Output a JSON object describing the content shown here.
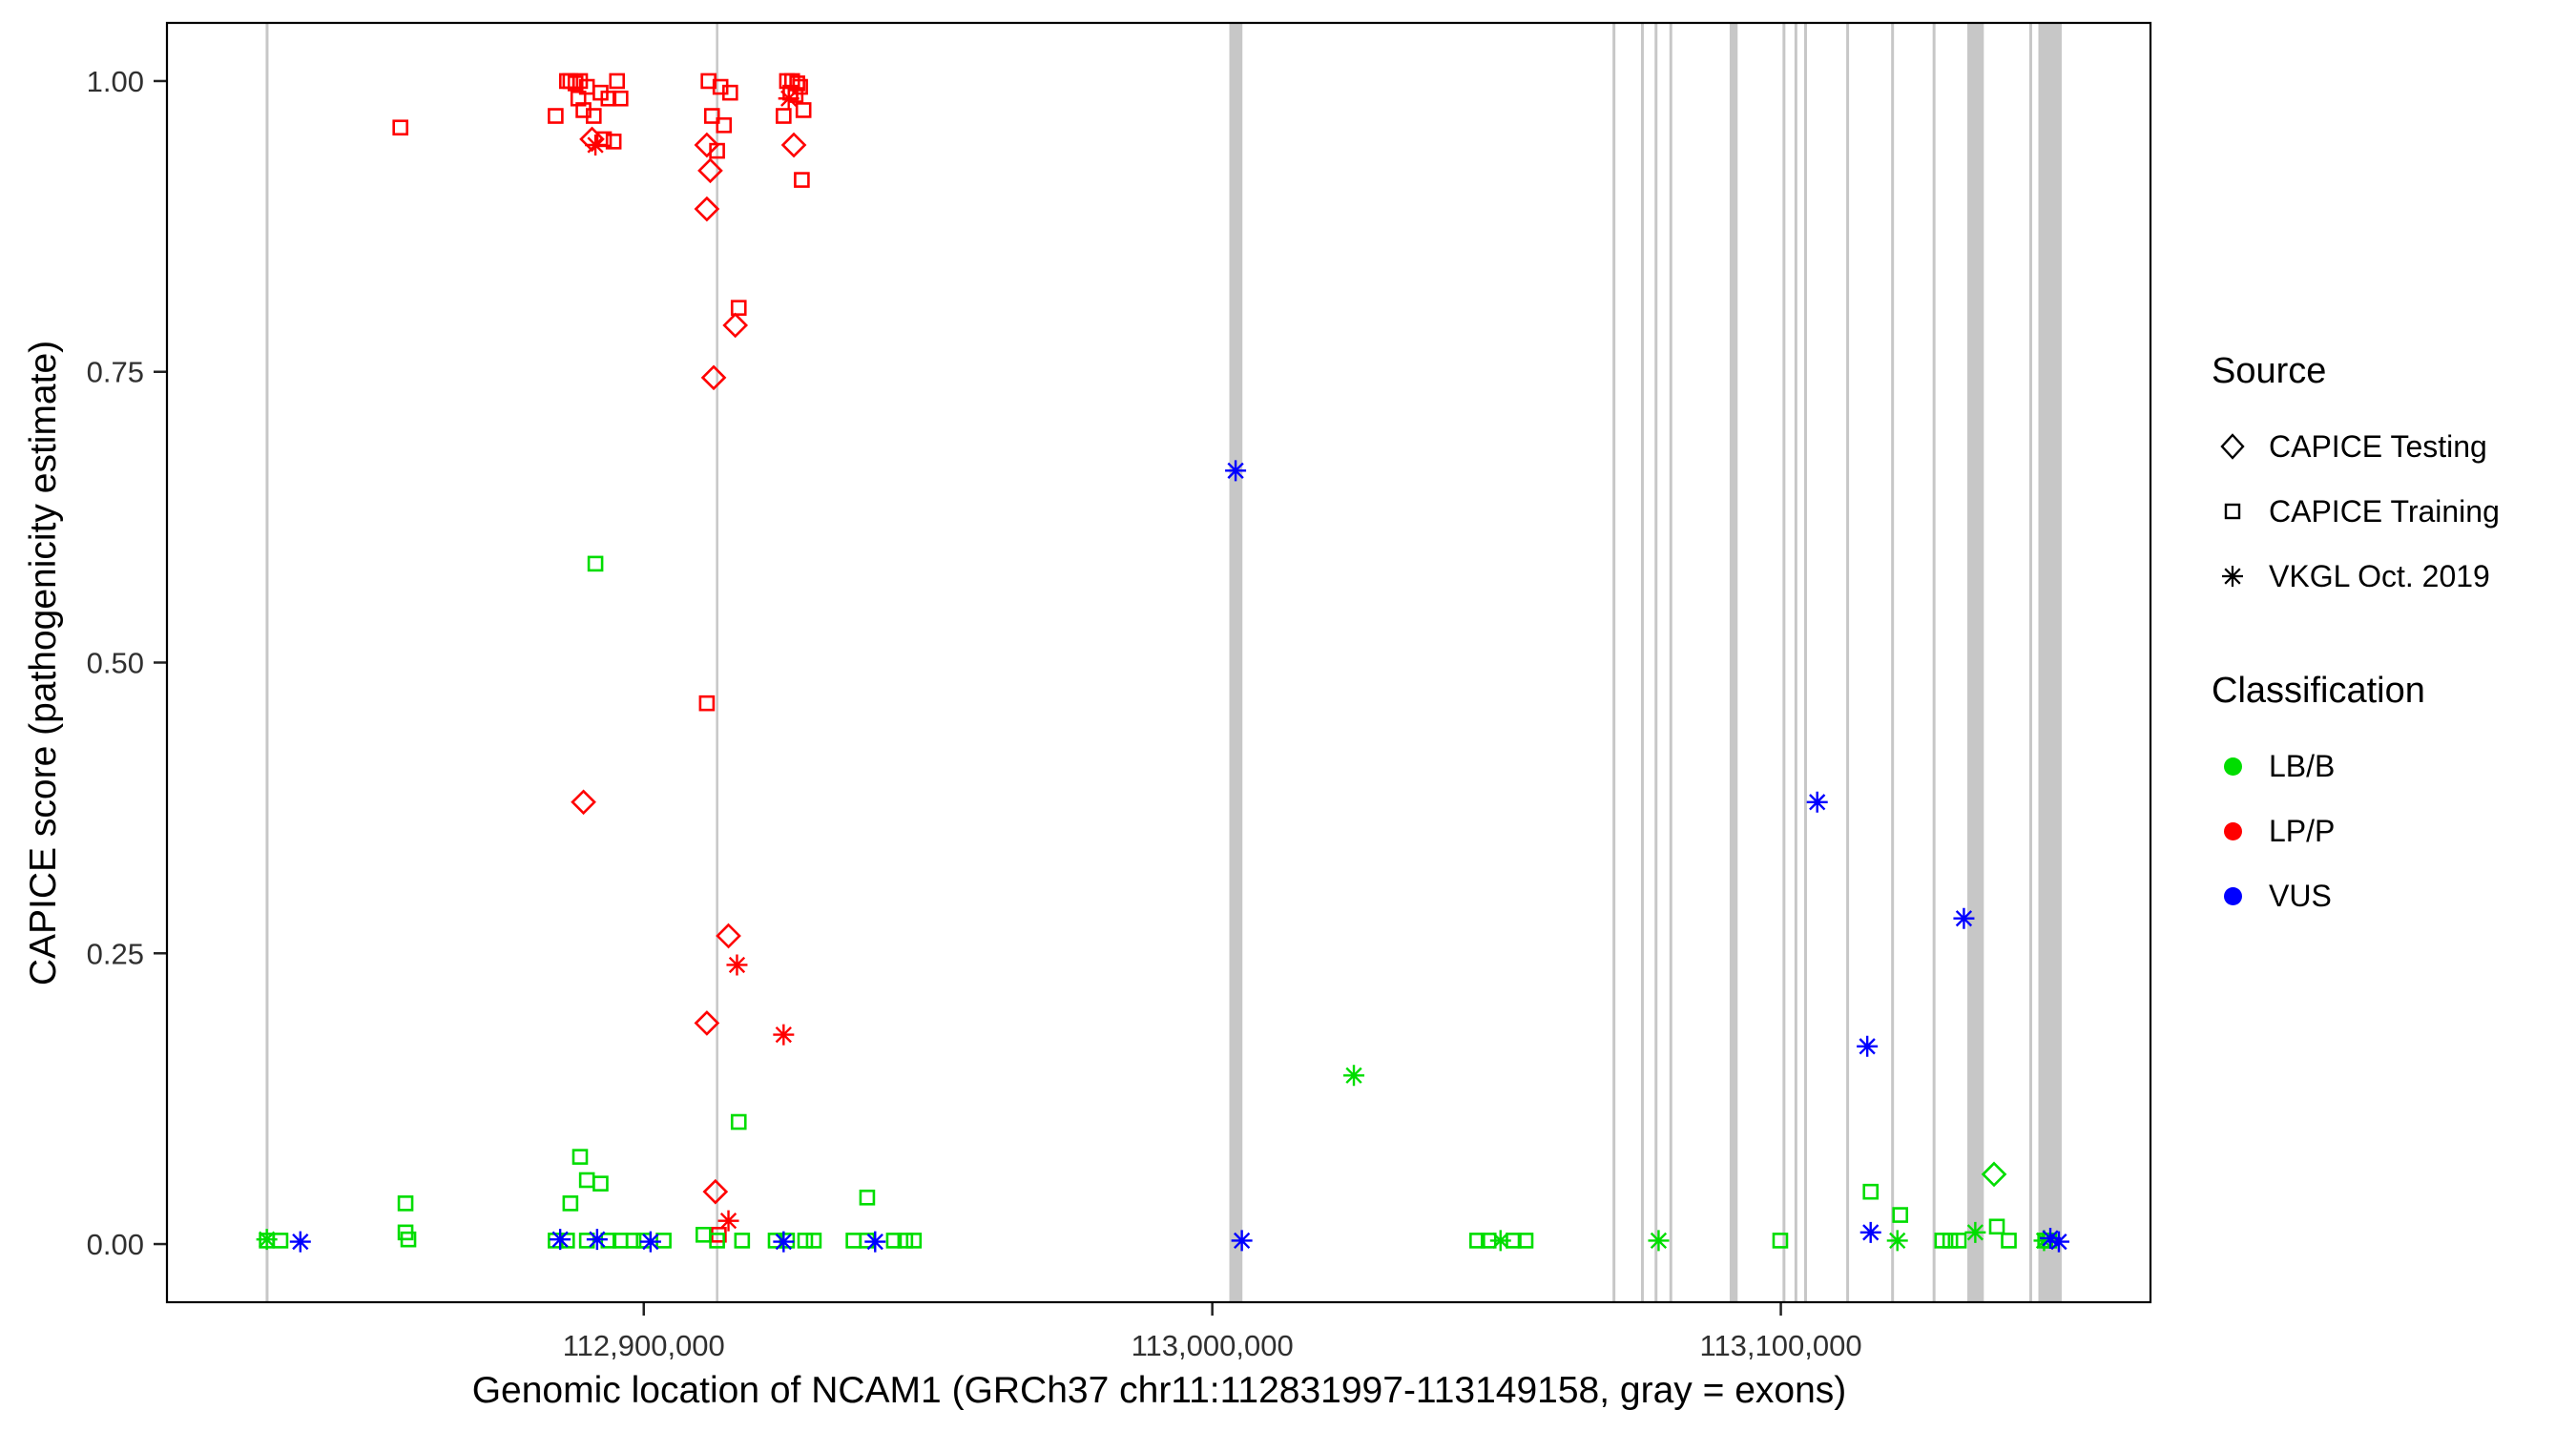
{
  "axes": {
    "x_title": "Genomic location of NCAM1 (GRCh37 chr11:112831997-113149158, gray = exons)",
    "y_title": "CAPICE score (pathogenicity estimate)",
    "x_ticks": [
      {
        "value": 112900000,
        "label": "112,900,000"
      },
      {
        "value": 113000000,
        "label": "113,000,000"
      },
      {
        "value": 113100000,
        "label": "113,100,000"
      }
    ],
    "y_ticks": [
      {
        "value": 0.0,
        "label": "0.00"
      },
      {
        "value": 0.25,
        "label": "0.25"
      },
      {
        "value": 0.5,
        "label": "0.50"
      },
      {
        "value": 0.75,
        "label": "0.75"
      },
      {
        "value": 1.0,
        "label": "1.00"
      }
    ]
  },
  "legend": {
    "source": {
      "title": "Source",
      "items": [
        {
          "label": "CAPICE Testing",
          "shape": "diamond"
        },
        {
          "label": "CAPICE Training",
          "shape": "square"
        },
        {
          "label": "VKGL Oct. 2019",
          "shape": "asterisk"
        }
      ]
    },
    "classification": {
      "title": "Classification",
      "items": [
        {
          "label": "LB/B",
          "color": "#00DD00"
        },
        {
          "label": "LP/P",
          "color": "#FF0000"
        },
        {
          "label": "VUS",
          "color": "#0000FF"
        }
      ]
    }
  },
  "chart_data": {
    "type": "scatter",
    "title": "",
    "xlabel": "Genomic location of NCAM1 (GRCh37 chr11:112831997-113149158, gray = exons)",
    "ylabel": "CAPICE score (pathogenicity estimate)",
    "x_range": [
      112831997,
      113149158
    ],
    "x_range_expanded": [
      112816139,
      113165016
    ],
    "y_range": [
      0,
      1
    ],
    "y_range_expanded": [
      -0.05,
      1.05
    ],
    "legend_position": "right",
    "grid": false,
    "exon_color": "#C7C7C7",
    "panel_border_color": "#000000",
    "class_colors": {
      "LB/B": "#00DD00",
      "LP/P": "#FF0000",
      "VUS": "#0000FF"
    },
    "source_shapes": {
      "testing": "diamond",
      "training": "square",
      "vkgl": "asterisk"
    },
    "exons": [
      {
        "start": 112833500,
        "width_bp": 500
      },
      {
        "start": 112912700,
        "width_bp": 400
      },
      {
        "start": 113003000,
        "width_bp": 2300
      },
      {
        "start": 113070400,
        "width_bp": 500
      },
      {
        "start": 113075400,
        "width_bp": 500
      },
      {
        "start": 113077800,
        "width_bp": 500
      },
      {
        "start": 113080400,
        "width_bp": 500
      },
      {
        "start": 113091000,
        "width_bp": 1400
      },
      {
        "start": 113100300,
        "width_bp": 500
      },
      {
        "start": 113102400,
        "width_bp": 500
      },
      {
        "start": 113104100,
        "width_bp": 500
      },
      {
        "start": 113111500,
        "width_bp": 500
      },
      {
        "start": 113119400,
        "width_bp": 500
      },
      {
        "start": 113126700,
        "width_bp": 500
      },
      {
        "start": 113132800,
        "width_bp": 2900
      },
      {
        "start": 113143700,
        "width_bp": 500
      },
      {
        "start": 113145300,
        "width_bp": 4100
      }
    ],
    "points_format": [
      "genomic_x",
      "capice_score",
      "source",
      "classification"
    ],
    "points": [
      [
        112857200,
        0.96,
        "training",
        "LP/P"
      ],
      [
        112884500,
        0.97,
        "training",
        "LP/P"
      ],
      [
        112886500,
        1.0,
        "training",
        "LP/P"
      ],
      [
        112887100,
        1.0,
        "training",
        "LP/P"
      ],
      [
        112888000,
        0.998,
        "training",
        "LP/P"
      ],
      [
        112888800,
        1.0,
        "training",
        "LP/P"
      ],
      [
        112888500,
        0.985,
        "training",
        "LP/P"
      ],
      [
        112889400,
        0.975,
        "training",
        "LP/P"
      ],
      [
        112890000,
        0.995,
        "training",
        "LP/P"
      ],
      [
        112891200,
        0.97,
        "training",
        "LP/P"
      ],
      [
        112892400,
        0.99,
        "training",
        "LP/P"
      ],
      [
        112893000,
        0.95,
        "training",
        "LP/P"
      ],
      [
        112893800,
        0.985,
        "training",
        "LP/P"
      ],
      [
        112894700,
        0.948,
        "training",
        "LP/P"
      ],
      [
        112895300,
        1.0,
        "training",
        "LP/P"
      ],
      [
        112895900,
        0.985,
        "training",
        "LP/P"
      ],
      [
        112911400,
        1.0,
        "training",
        "LP/P"
      ],
      [
        112913500,
        0.995,
        "training",
        "LP/P"
      ],
      [
        112915200,
        0.99,
        "training",
        "LP/P"
      ],
      [
        112912000,
        0.97,
        "training",
        "LP/P"
      ],
      [
        112914100,
        0.962,
        "training",
        "LP/P"
      ],
      [
        112912900,
        0.94,
        "training",
        "LP/P"
      ],
      [
        112916700,
        0.805,
        "training",
        "LP/P"
      ],
      [
        112911100,
        0.465,
        "training",
        "LP/P"
      ],
      [
        112913200,
        0.008,
        "training",
        "LP/P"
      ],
      [
        112925200,
        1.0,
        "training",
        "LP/P"
      ],
      [
        112926100,
        1.0,
        "training",
        "LP/P"
      ],
      [
        112927000,
        0.998,
        "training",
        "LP/P"
      ],
      [
        112925800,
        0.99,
        "training",
        "LP/P"
      ],
      [
        112926700,
        0.988,
        "training",
        "LP/P"
      ],
      [
        112927500,
        0.995,
        "training",
        "LP/P"
      ],
      [
        112924600,
        0.97,
        "training",
        "LP/P"
      ],
      [
        112928100,
        0.975,
        "training",
        "LP/P"
      ],
      [
        112927800,
        0.915,
        "training",
        "LP/P"
      ],
      [
        112890900,
        0.95,
        "testing",
        "LP/P"
      ],
      [
        112911100,
        0.945,
        "testing",
        "LP/P"
      ],
      [
        112911700,
        0.923,
        "testing",
        "LP/P"
      ],
      [
        112911100,
        0.89,
        "testing",
        "LP/P"
      ],
      [
        112926400,
        0.945,
        "testing",
        "LP/P"
      ],
      [
        112916100,
        0.79,
        "testing",
        "LP/P"
      ],
      [
        112912300,
        0.745,
        "testing",
        "LP/P"
      ],
      [
        112889400,
        0.38,
        "testing",
        "LP/P"
      ],
      [
        112914900,
        0.265,
        "testing",
        "LP/P"
      ],
      [
        112911100,
        0.19,
        "testing",
        "LP/P"
      ],
      [
        112912600,
        0.045,
        "testing",
        "LP/P"
      ],
      [
        112891500,
        0.945,
        "vkgl",
        "LP/P"
      ],
      [
        112925500,
        0.985,
        "vkgl",
        "LP/P"
      ],
      [
        112916400,
        0.24,
        "vkgl",
        "LP/P"
      ],
      [
        112924600,
        0.18,
        "vkgl",
        "LP/P"
      ],
      [
        112914900,
        0.02,
        "vkgl",
        "LP/P"
      ],
      [
        112891500,
        0.585,
        "training",
        "LB/B"
      ],
      [
        112916700,
        0.105,
        "training",
        "LB/B"
      ],
      [
        112888800,
        0.075,
        "training",
        "LB/B"
      ],
      [
        112890000,
        0.055,
        "training",
        "LB/B"
      ],
      [
        112892400,
        0.052,
        "training",
        "LB/B"
      ],
      [
        112887100,
        0.035,
        "training",
        "LB/B"
      ],
      [
        112858100,
        0.035,
        "training",
        "LB/B"
      ],
      [
        112858100,
        0.01,
        "training",
        "LB/B"
      ],
      [
        112939300,
        0.04,
        "training",
        "LB/B"
      ],
      [
        113115800,
        0.045,
        "training",
        "LB/B"
      ],
      [
        113121000,
        0.025,
        "training",
        "LB/B"
      ],
      [
        113138000,
        0.015,
        "training",
        "LB/B"
      ],
      [
        112833700,
        0.003,
        "training",
        "LB/B"
      ],
      [
        112836100,
        0.003,
        "training",
        "LB/B"
      ],
      [
        112858600,
        0.004,
        "training",
        "LB/B"
      ],
      [
        112884500,
        0.003,
        "training",
        "LB/B"
      ],
      [
        112886500,
        0.003,
        "training",
        "LB/B"
      ],
      [
        112890000,
        0.003,
        "training",
        "LB/B"
      ],
      [
        112893800,
        0.003,
        "training",
        "LB/B"
      ],
      [
        112895900,
        0.003,
        "training",
        "LB/B"
      ],
      [
        112898200,
        0.003,
        "training",
        "LB/B"
      ],
      [
        112900000,
        0.003,
        "training",
        "LB/B"
      ],
      [
        112903500,
        0.003,
        "training",
        "LB/B"
      ],
      [
        112910500,
        0.008,
        "training",
        "LB/B"
      ],
      [
        112912900,
        0.003,
        "training",
        "LB/B"
      ],
      [
        112917300,
        0.003,
        "training",
        "LB/B"
      ],
      [
        112923200,
        0.003,
        "training",
        "LB/B"
      ],
      [
        112925200,
        0.003,
        "training",
        "LB/B"
      ],
      [
        112928400,
        0.003,
        "training",
        "LB/B"
      ],
      [
        112929900,
        0.003,
        "training",
        "LB/B"
      ],
      [
        112936900,
        0.003,
        "training",
        "LB/B"
      ],
      [
        112939300,
        0.003,
        "training",
        "LB/B"
      ],
      [
        112944000,
        0.003,
        "training",
        "LB/B"
      ],
      [
        112946000,
        0.003,
        "training",
        "LB/B"
      ],
      [
        112947500,
        0.003,
        "training",
        "LB/B"
      ],
      [
        113046600,
        0.003,
        "training",
        "LB/B"
      ],
      [
        113048600,
        0.003,
        "training",
        "LB/B"
      ],
      [
        113053000,
        0.003,
        "training",
        "LB/B"
      ],
      [
        113055100,
        0.003,
        "training",
        "LB/B"
      ],
      [
        113099900,
        0.003,
        "training",
        "LB/B"
      ],
      [
        113128400,
        0.003,
        "training",
        "LB/B"
      ],
      [
        113129800,
        0.003,
        "training",
        "LB/B"
      ],
      [
        113131300,
        0.003,
        "training",
        "LB/B"
      ],
      [
        113140100,
        0.003,
        "training",
        "LB/B"
      ],
      [
        113146500,
        0.003,
        "training",
        "LB/B"
      ],
      [
        113147200,
        0.003,
        "training",
        "LB/B"
      ],
      [
        113137500,
        0.06,
        "testing",
        "LB/B"
      ],
      [
        112833700,
        0.004,
        "vkgl",
        "LB/B"
      ],
      [
        113024900,
        0.145,
        "vkgl",
        "LB/B"
      ],
      [
        113050700,
        0.003,
        "vkgl",
        "LB/B"
      ],
      [
        113078500,
        0.003,
        "vkgl",
        "LB/B"
      ],
      [
        113120500,
        0.003,
        "vkgl",
        "LB/B"
      ],
      [
        113134200,
        0.01,
        "vkgl",
        "LB/B"
      ],
      [
        113146300,
        0.003,
        "vkgl",
        "LB/B"
      ],
      [
        113004100,
        0.665,
        "vkgl",
        "VUS"
      ],
      [
        113005200,
        0.003,
        "vkgl",
        "VUS"
      ],
      [
        113106400,
        0.38,
        "vkgl",
        "VUS"
      ],
      [
        113132200,
        0.28,
        "vkgl",
        "VUS"
      ],
      [
        113115200,
        0.17,
        "vkgl",
        "VUS"
      ],
      [
        113115800,
        0.01,
        "vkgl",
        "VUS"
      ],
      [
        113147400,
        0.005,
        "vkgl",
        "VUS"
      ],
      [
        113148900,
        0.002,
        "vkgl",
        "VUS"
      ],
      [
        112839600,
        0.002,
        "vkgl",
        "VUS"
      ],
      [
        112885300,
        0.004,
        "vkgl",
        "VUS"
      ],
      [
        112891800,
        0.004,
        "vkgl",
        "VUS"
      ],
      [
        112901200,
        0.002,
        "vkgl",
        "VUS"
      ],
      [
        112924600,
        0.002,
        "vkgl",
        "VUS"
      ],
      [
        112940700,
        0.002,
        "vkgl",
        "VUS"
      ]
    ]
  }
}
